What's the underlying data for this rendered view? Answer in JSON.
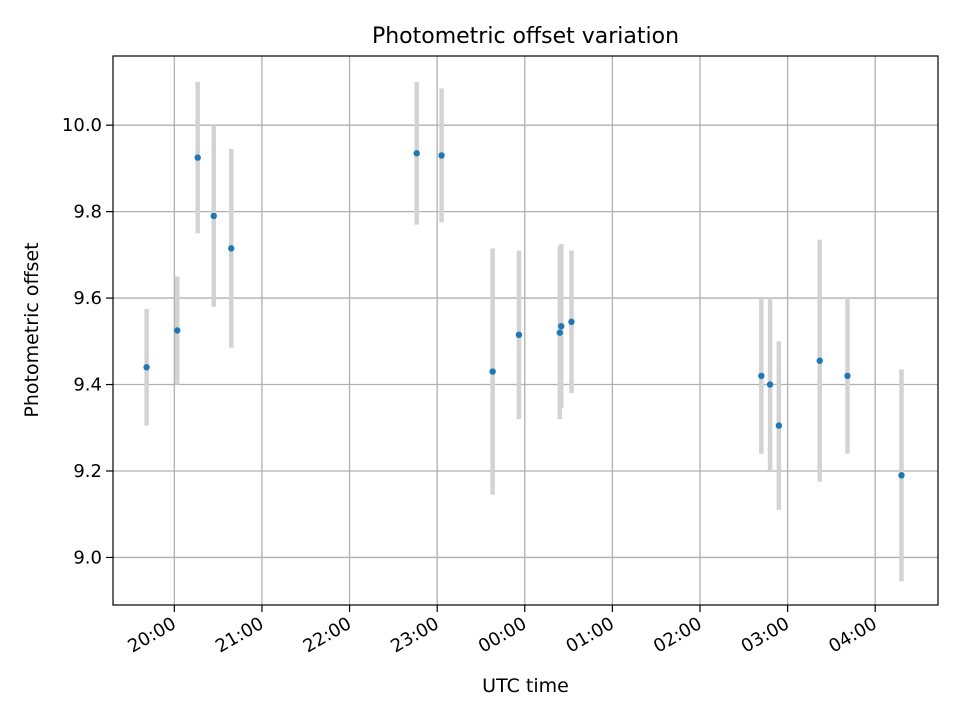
{
  "chart_data": {
    "type": "scatter",
    "title": "Photometric offset variation",
    "xlabel": "UTC time",
    "ylabel": "Photometric offset",
    "x_axis": {
      "kind": "time",
      "date": "",
      "range": [
        "19:18",
        "04:43"
      ],
      "ticks": [
        "20:00",
        "21:00",
        "22:00",
        "23:00",
        "00:00",
        "01:00",
        "02:00",
        "03:00",
        "04:00"
      ]
    },
    "y_axis": {
      "range": [
        8.89,
        10.16
      ],
      "ticks": [
        9.0,
        9.2,
        9.4,
        9.6,
        9.8,
        10.0
      ]
    },
    "grid": true,
    "colors": {
      "point": "#1f77b4",
      "errorbar": "#d3d3d3",
      "grid": "#b0b0b0"
    },
    "series": [
      {
        "points": [
          {
            "t": "19:41",
            "y": 9.44,
            "err": 0.135
          },
          {
            "t": "20:02",
            "y": 9.525,
            "err": 0.125
          },
          {
            "t": "20:16",
            "y": 9.925,
            "err": 0.175
          },
          {
            "t": "20:27",
            "y": 9.79,
            "err": 0.21
          },
          {
            "t": "20:39",
            "y": 9.715,
            "err": 0.23
          },
          {
            "t": "22:46",
            "y": 9.935,
            "err": 0.165
          },
          {
            "t": "23:03",
            "y": 9.93,
            "err": 0.155
          },
          {
            "t": "23:38",
            "y": 9.43,
            "err": 0.285
          },
          {
            "t": "23:56",
            "y": 9.515,
            "err": 0.195
          },
          {
            "t": "00:24",
            "y": 9.52,
            "err": 0.2
          },
          {
            "t": "00:25",
            "y": 9.535,
            "err": 0.19
          },
          {
            "t": "00:32",
            "y": 9.545,
            "err": 0.165
          },
          {
            "t": "02:42",
            "y": 9.42,
            "err": 0.18
          },
          {
            "t": "02:48",
            "y": 9.4,
            "err": 0.2
          },
          {
            "t": "02:54",
            "y": 9.305,
            "err": 0.195
          },
          {
            "t": "03:22",
            "y": 9.455,
            "err": 0.28
          },
          {
            "t": "03:41",
            "y": 9.42,
            "err": 0.18
          },
          {
            "t": "04:18",
            "y": 9.19,
            "err": 0.245
          }
        ]
      }
    ]
  }
}
